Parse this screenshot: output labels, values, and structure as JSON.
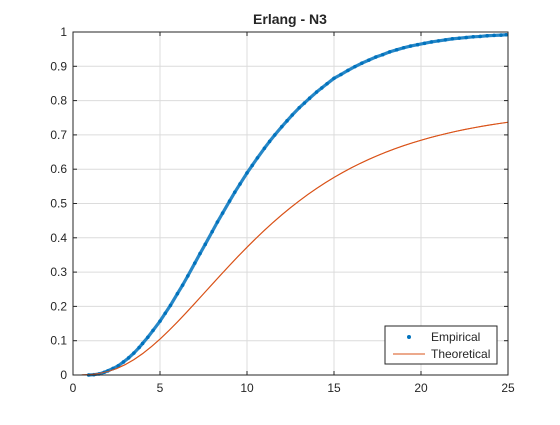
{
  "chart_data": {
    "type": "scatter",
    "title": "Erlang  - N3",
    "xlabel": "",
    "ylabel": "",
    "xlim": [
      0,
      25
    ],
    "ylim": [
      0,
      1
    ],
    "xticks": [
      0,
      5,
      10,
      15,
      20,
      25
    ],
    "yticks": [
      0,
      0.1,
      0.2,
      0.3,
      0.4,
      0.5,
      0.6,
      0.7,
      0.8,
      0.9,
      1
    ],
    "grid": true,
    "legend_position": "bottom-right",
    "series": [
      {
        "name": "Empirical",
        "style": "points",
        "color": "#0072BD",
        "x": [
          0.9,
          1.2,
          1.5,
          1.8,
          2.0,
          2.3,
          2.6,
          2.9,
          3.2,
          3.5,
          3.8,
          4.0,
          4.3,
          4.6,
          5.0,
          5.3,
          5.6,
          6.0,
          6.3,
          6.6,
          7.0,
          7.3,
          7.6,
          8.0,
          8.3,
          8.6,
          9.0,
          9.3,
          9.6,
          10.0,
          10.3,
          10.6,
          11.0,
          11.3,
          11.6,
          12.0,
          12.3,
          12.6,
          13.0,
          13.3,
          13.6,
          14.0,
          14.3,
          14.6,
          15.0,
          15.4,
          15.8,
          16.2,
          16.6,
          17.0,
          17.4,
          17.8,
          18.2,
          18.6,
          19.0,
          19.4,
          19.8,
          20.2,
          20.6,
          21.0,
          21.4,
          21.8,
          22.2,
          22.6,
          23.0,
          23.4,
          23.8,
          24.2,
          24.6,
          24.9
        ],
        "y": [
          0.0,
          0.001,
          0.003,
          0.008,
          0.012,
          0.019,
          0.027,
          0.038,
          0.05,
          0.064,
          0.08,
          0.092,
          0.11,
          0.13,
          0.157,
          0.18,
          0.203,
          0.237,
          0.262,
          0.289,
          0.326,
          0.354,
          0.381,
          0.418,
          0.446,
          0.472,
          0.507,
          0.533,
          0.557,
          0.589,
          0.611,
          0.633,
          0.661,
          0.681,
          0.7,
          0.724,
          0.741,
          0.758,
          0.779,
          0.793,
          0.807,
          0.825,
          0.837,
          0.849,
          0.865,
          0.876,
          0.888,
          0.899,
          0.909,
          0.918,
          0.927,
          0.934,
          0.942,
          0.948,
          0.954,
          0.959,
          0.963,
          0.967,
          0.971,
          0.974,
          0.977,
          0.98,
          0.982,
          0.984,
          0.986,
          0.987,
          0.989,
          0.99,
          0.991,
          0.992
        ]
      },
      {
        "name": "Theoretical",
        "style": "line",
        "color": "#D95319",
        "x": [
          0,
          0.5,
          1,
          1.5,
          2,
          2.5,
          3,
          3.5,
          4,
          4.5,
          5,
          5.5,
          6,
          6.5,
          7,
          7.5,
          8,
          8.5,
          9,
          9.5,
          10,
          10.5,
          11,
          11.5,
          12,
          12.5,
          13,
          13.5,
          14,
          14.5,
          15,
          15.5,
          16,
          16.5,
          17,
          17.5,
          18,
          18.5,
          19,
          19.5,
          20,
          20.5,
          21,
          21.5,
          22,
          22.5,
          23,
          23.5,
          24,
          24.5,
          25
        ],
        "y": [
          0,
          0.0002,
          0.0014,
          0.0045,
          0.0101,
          0.0186,
          0.0302,
          0.0448,
          0.0623,
          0.0824,
          0.1047,
          0.1289,
          0.1546,
          0.1813,
          0.2088,
          0.2367,
          0.2646,
          0.2924,
          0.3197,
          0.3465,
          0.3725,
          0.3976,
          0.4218,
          0.4449,
          0.4669,
          0.4878,
          0.5076,
          0.5263,
          0.5439,
          0.5605,
          0.576,
          0.5905,
          0.6041,
          0.6168,
          0.6287,
          0.6397,
          0.65,
          0.6596,
          0.6685,
          0.6768,
          0.6845,
          0.6917,
          0.6983,
          0.7045,
          0.7102,
          0.7156,
          0.7205,
          0.7251,
          0.7293,
          0.7332,
          0.7369
        ]
      }
    ]
  }
}
